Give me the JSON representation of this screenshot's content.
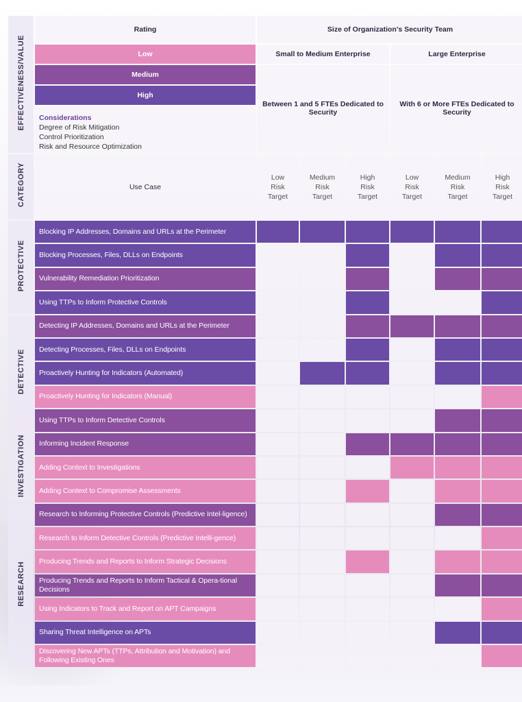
{
  "header": {
    "side_label": "EFFECTIVENESS/VALUE",
    "rating_label": "Rating",
    "team_size_label": "Size of Organization's Security Team",
    "sme_label": "Small to Medium Enterprise",
    "large_label": "Large Enterprise",
    "sme_desc": "Between 1 and 5 FTEs Dedicated to Security",
    "large_desc": "With 6 or More FTEs Dedicated to Security"
  },
  "ratings": {
    "low": "Low",
    "medium": "Medium",
    "high": "High"
  },
  "considerations": {
    "title": "Considerations",
    "items": [
      "Degree of Risk Mitigation",
      "Control Prioritization",
      "Risk and Resource Optimization"
    ]
  },
  "category_row": {
    "side_label": "CATEGORY",
    "use_case_label": "Use Case",
    "targets": [
      [
        "Low",
        "Risk",
        "Target"
      ],
      [
        "Medium",
        "Risk",
        "Target"
      ],
      [
        "High",
        "Risk",
        "Target"
      ],
      [
        "Low",
        "Risk",
        "Target"
      ],
      [
        "Medium",
        "Risk",
        "Target"
      ],
      [
        "High",
        "Risk",
        "Target"
      ]
    ]
  },
  "colors": {
    "high": "#6a4ca6",
    "medium": "#8a4f9d",
    "low": "#e68cbd",
    "empty": "#f4f2f8"
  },
  "sections": [
    {
      "label": "PROTECTIVE",
      "rows": [
        {
          "use_case": "Blocking IP Addresses, Domains and URLs at the Perimeter",
          "rating": 1,
          "cells": [
            1,
            1,
            1,
            1,
            1,
            1
          ]
        },
        {
          "use_case": "Blocking Processes, Files, DLLs on Endpoints",
          "rating": 1,
          "cells": [
            0,
            0,
            1,
            0,
            1,
            1
          ]
        },
        {
          "use_case": "Vulnerability Remediation Prioritization",
          "rating": 2,
          "cells": [
            0,
            0,
            2,
            0,
            2,
            2
          ]
        },
        {
          "use_case": "Using TTPs to Inform Protective Controls",
          "rating": 1,
          "cells": [
            0,
            0,
            1,
            0,
            0,
            1
          ]
        }
      ]
    },
    {
      "label": "DETECTIVE",
      "rows": [
        {
          "use_case": "Detecting IP Addresses, Domains and URLs at the Perimeter",
          "rating": 2,
          "cells": [
            0,
            0,
            2,
            2,
            2,
            2
          ]
        },
        {
          "use_case": "Detecting Processes, Files, DLLs on Endpoints",
          "rating": 1,
          "cells": [
            0,
            0,
            1,
            0,
            1,
            1
          ]
        },
        {
          "use_case": "Proactively Hunting for Indicators (Automated)",
          "rating": 1,
          "cells": [
            0,
            1,
            1,
            0,
            1,
            1
          ]
        },
        {
          "use_case": "Proactively Hunting for Indicators (Manual)",
          "rating": 3,
          "cells": [
            0,
            0,
            0,
            0,
            0,
            3
          ]
        },
        {
          "use_case": "Using TTPs to Inform Detective Controls",
          "rating": 2,
          "cells": [
            0,
            0,
            0,
            0,
            2,
            2
          ]
        }
      ]
    },
    {
      "label": "INVESTIGATION",
      "rows": [
        {
          "use_case": "Informing Incident Response",
          "rating": 2,
          "cells": [
            0,
            0,
            2,
            2,
            2,
            2
          ]
        },
        {
          "use_case": "Adding Context to Investigations",
          "rating": 3,
          "cells": [
            0,
            0,
            0,
            3,
            3,
            3
          ]
        },
        {
          "use_case": "Adding Context to Compromise Assessments",
          "rating": 3,
          "cells": [
            0,
            0,
            3,
            0,
            3,
            3
          ]
        }
      ]
    },
    {
      "label": "RESEARCH",
      "rows": [
        {
          "use_case": "Research to Informing Protective Controls (Predictive Intel-ligence)",
          "rating": 2,
          "cells": [
            0,
            0,
            0,
            0,
            2,
            2
          ]
        },
        {
          "use_case": "Research to Inform Detective Controls (Predictive Intelli-gence)",
          "rating": 3,
          "cells": [
            0,
            0,
            0,
            0,
            0,
            3
          ]
        },
        {
          "use_case": "Producing Trends and Reports to Inform Strategic Decisions",
          "rating": 3,
          "cells": [
            0,
            0,
            3,
            0,
            3,
            3
          ]
        },
        {
          "use_case": "Producing Trends and Reports to Inform Tactical & Opera-tional Decisions",
          "rating": 2,
          "cells": [
            0,
            0,
            0,
            0,
            2,
            2
          ]
        },
        {
          "use_case": "Using Indicators to Track and Report on APT Campaigns",
          "rating": 3,
          "cells": [
            0,
            0,
            0,
            0,
            0,
            3
          ]
        },
        {
          "use_case": "Sharing Threat Intelligence on APTs",
          "rating": 1,
          "cells": [
            0,
            0,
            0,
            0,
            1,
            1
          ]
        },
        {
          "use_case": "Discovering New APTs (TTPs, Attribution and Motivation) and Following Existing Ones",
          "rating": 3,
          "cells": [
            0,
            0,
            0,
            0,
            0,
            3
          ]
        }
      ]
    }
  ]
}
